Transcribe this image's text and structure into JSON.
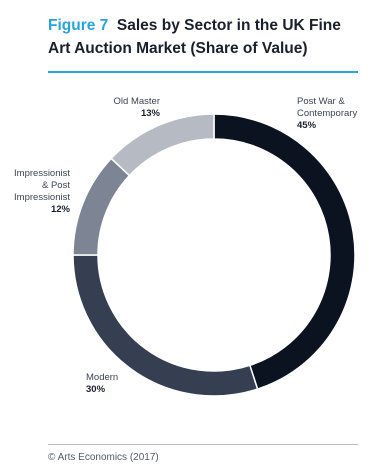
{
  "header": {
    "figure_number": "Figure 7",
    "title": "Sales by Sector in the UK Fine Art Auction Market (Share of Value)"
  },
  "source": "© Arts Economics (2017)",
  "colors": {
    "accent": "#2aa3d9",
    "rule": "#b8bcc2"
  },
  "chart_data": {
    "type": "pie",
    "donut": true,
    "start": "top",
    "direction": "clockwise",
    "slices": [
      {
        "label_lines": [
          "Post War &",
          "Contemporary"
        ],
        "value": 45,
        "value_label": "45%",
        "color": "#0b1220"
      },
      {
        "label_lines": [
          "Modern"
        ],
        "value": 30,
        "value_label": "30%",
        "color": "#363f51"
      },
      {
        "label_lines": [
          "Impressionist",
          "& Post",
          "Impressionist"
        ],
        "value": 12,
        "value_label": "12%",
        "color": "#7d8494"
      },
      {
        "label_lines": [
          "Old Master"
        ],
        "value": 13,
        "value_label": "13%",
        "color": "#b6bac2"
      }
    ]
  }
}
